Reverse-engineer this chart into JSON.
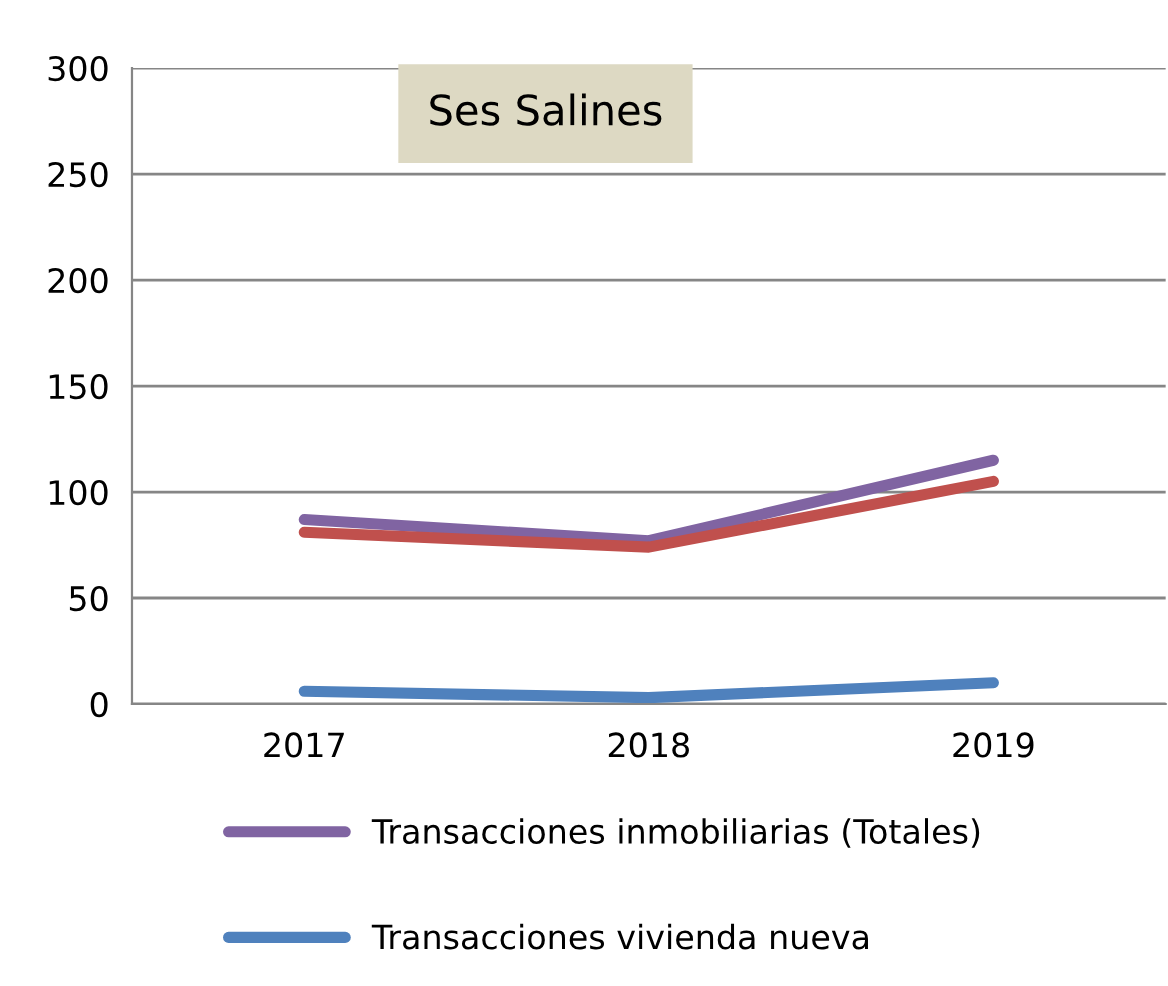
{
  "chart_data": {
    "type": "line",
    "title": "Ses Salines",
    "categories": [
      "2017",
      "2018",
      "2019"
    ],
    "series": [
      {
        "name": "Transacciones inmobiliarias (Totales)",
        "color": "#8064a2",
        "values": [
          87,
          77,
          115
        ]
      },
      {
        "color": "#c0504d",
        "values": [
          81,
          74,
          105
        ]
      },
      {
        "name": "Transacciones vivienda nueva",
        "color": "#4f81bd",
        "values": [
          6,
          3,
          10
        ]
      }
    ],
    "ylim": [
      0,
      300
    ],
    "yticks": [
      0,
      50,
      100,
      150,
      200,
      250,
      300
    ],
    "grid": "y",
    "legend": "bottom",
    "marker": "none",
    "line_style": "solid"
  }
}
